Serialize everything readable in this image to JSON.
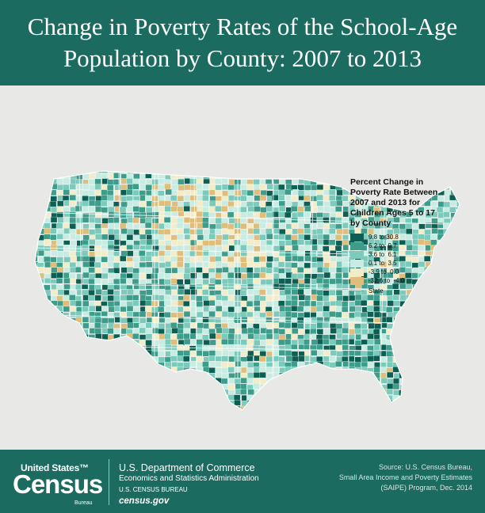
{
  "title": {
    "line1": "Change in Poverty Rates of the School-Age",
    "line2": "Population by County: 2007 to 2013"
  },
  "legend": {
    "title": "Percent Change in Poverty Rate Between 2007 and 2013 for Children Ages 5 to 17 by County",
    "items": [
      {
        "label": "9.8 to 30.8",
        "color": "#0d5e53"
      },
      {
        "label": "6.2 to  9.7",
        "color": "#3e9c8b"
      },
      {
        "label": "3.6 to  6.1",
        "color": "#7ccabb"
      },
      {
        "label": "0.1 to  3.5",
        "color": "#c8ebe2"
      },
      {
        "label": "-3.9 to  0.0",
        "color": "#f2ecc8"
      },
      {
        "label": "-32.6 to  -4.0",
        "color": "#dfbe7b"
      }
    ],
    "state_label": "State"
  },
  "colors": {
    "header": "#1b6b60",
    "background": "#e8e8e7",
    "state_line": "#999999"
  },
  "footer": {
    "logo_top": "United States™",
    "logo_main": "Census",
    "logo_sub": "Bureau",
    "dept_line1": "U.S. Department of Commerce",
    "dept_line2": "Economics and Statistics Administration",
    "dept_line3": "U.S. CENSUS BUREAU",
    "dept_line4": "census.gov",
    "source_line1": "Source: U.S. Census Bureau,",
    "source_line2": "Small Area Income and Poverty Estimates",
    "source_line3": "(SAIPE) Program, Dec. 2014"
  }
}
